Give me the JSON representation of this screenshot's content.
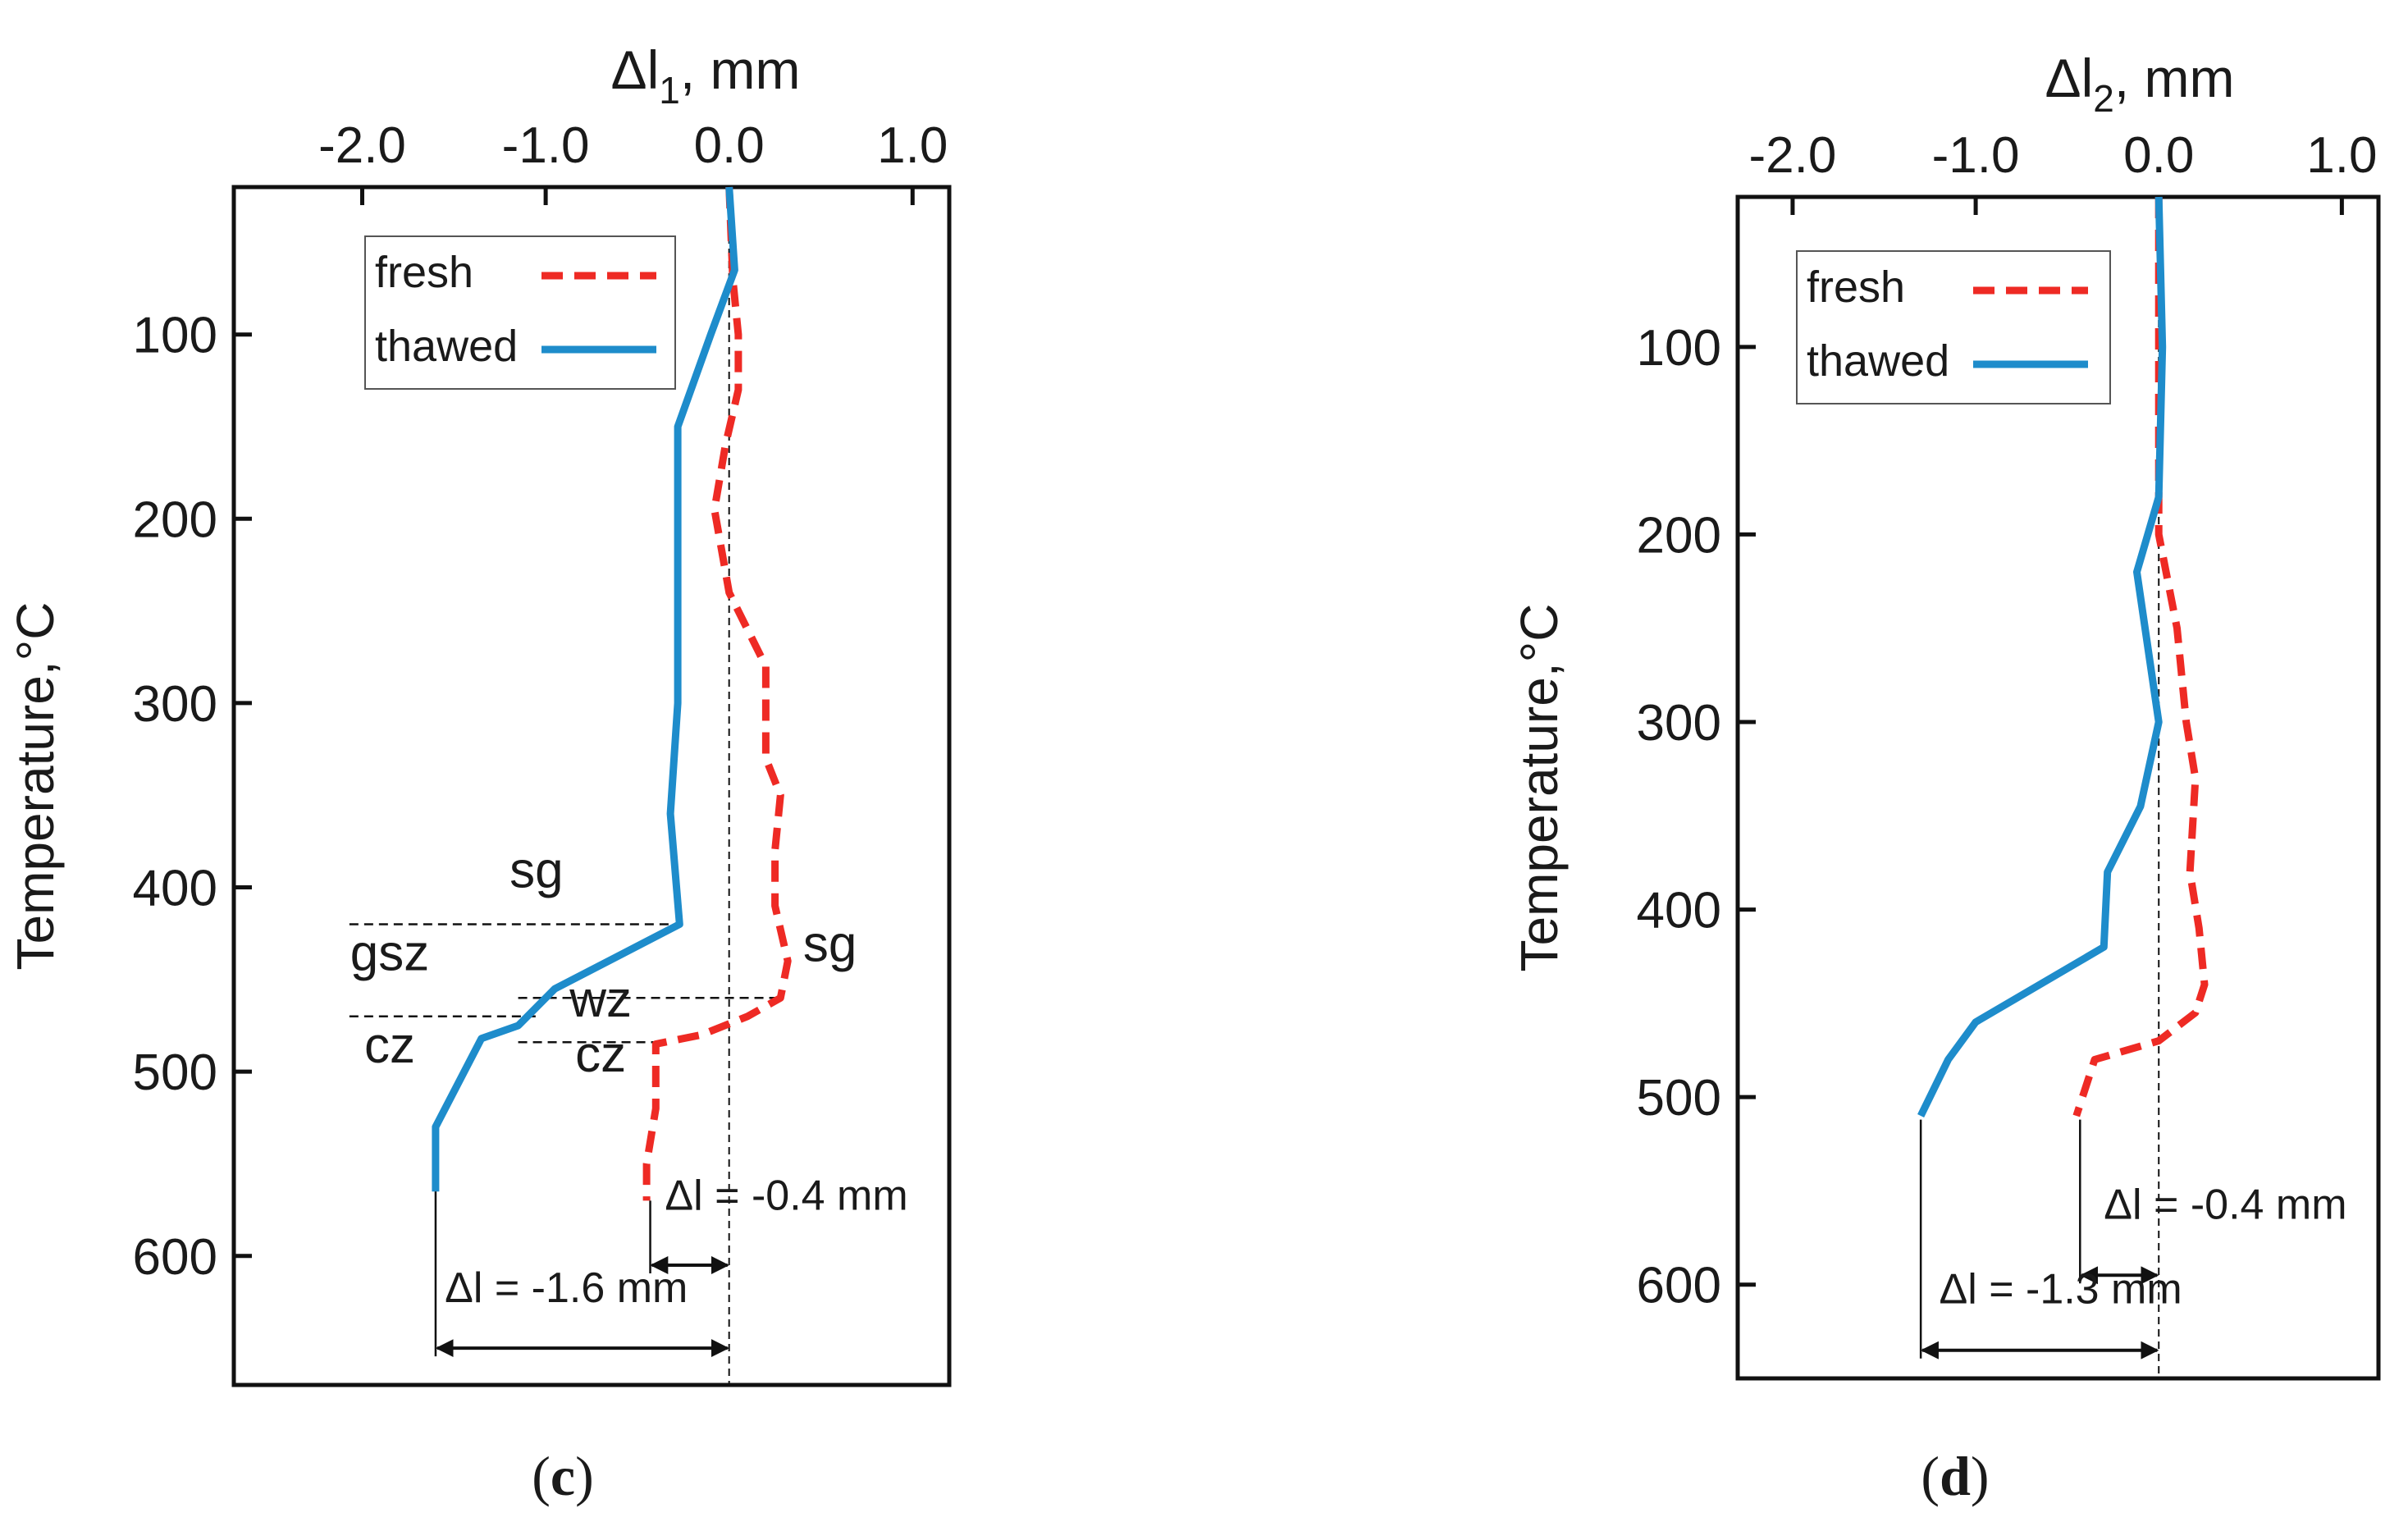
{
  "colors": {
    "fresh": "#ee2a24",
    "thawed": "#1e8ccb",
    "axis": "#111111"
  },
  "chart_data": [
    {
      "type": "line",
      "panel": "c",
      "caption": {
        "open": "(",
        "letter": "c",
        "close": ")"
      },
      "xlabel": {
        "prefix": "Δl",
        "sub": "1",
        "suffix": ", mm"
      },
      "ylabel": "Temperature,°C",
      "xlim": [
        -2.7,
        1.2
      ],
      "ylim": [
        20,
        670
      ],
      "xticks": [
        -2.0,
        -1.0,
        0.0,
        1.0
      ],
      "xtick_labels": [
        "-2.0",
        "-1.0",
        "0.0",
        "1.0"
      ],
      "yticks": [
        100,
        200,
        300,
        400,
        500,
        600
      ],
      "ytick_labels": [
        "100",
        "200",
        "300",
        "400",
        "500",
        "600"
      ],
      "legend": {
        "position": "top-left",
        "entries": [
          "fresh",
          "thawed"
        ]
      },
      "series": [
        {
          "name": "fresh",
          "style": "dashed",
          "points": [
            [
              0.0,
              20
            ],
            [
              0.02,
              70
            ],
            [
              0.05,
              100
            ],
            [
              0.05,
              130
            ],
            [
              -0.02,
              160
            ],
            [
              -0.08,
              195
            ],
            [
              0.0,
              240
            ],
            [
              0.2,
              280
            ],
            [
              0.2,
              330
            ],
            [
              0.28,
              350
            ],
            [
              0.25,
              380
            ],
            [
              0.25,
              410
            ],
            [
              0.32,
              440
            ],
            [
              0.28,
              460
            ],
            [
              0.1,
              470
            ],
            [
              -0.15,
              480
            ],
            [
              -0.4,
              485
            ],
            [
              -0.4,
              520
            ],
            [
              -0.45,
              550
            ],
            [
              -0.45,
              570
            ]
          ]
        },
        {
          "name": "thawed",
          "style": "solid",
          "points": [
            [
              0.0,
              20
            ],
            [
              0.03,
              65
            ],
            [
              -0.1,
              100
            ],
            [
              -0.28,
              150
            ],
            [
              -0.28,
              300
            ],
            [
              -0.32,
              360
            ],
            [
              -0.27,
              420
            ],
            [
              -0.95,
              455
            ],
            [
              -1.15,
              475
            ],
            [
              -1.35,
              482
            ],
            [
              -1.6,
              530
            ],
            [
              -1.6,
              565
            ]
          ]
        }
      ],
      "annotations": [
        {
          "text": "sg",
          "x": -1.05,
          "y": 400
        },
        {
          "text": "gsz",
          "x": -1.85,
          "y": 445
        },
        {
          "text": "cz",
          "x": -1.85,
          "y": 495
        },
        {
          "text": "wz",
          "x": -0.7,
          "y": 470
        },
        {
          "text": "cz",
          "x": -0.7,
          "y": 500
        },
        {
          "text": "sg",
          "x": 0.55,
          "y": 440
        }
      ],
      "zone_lines": [
        {
          "y": 420,
          "x0": -2.07,
          "x1": -0.27
        },
        {
          "y": 470,
          "x0": -2.07,
          "x1": -1.05
        },
        {
          "y": 460,
          "x0": -1.15,
          "x1": 0.28
        },
        {
          "y": 484,
          "x0": -1.15,
          "x1": -0.38
        }
      ],
      "deltas": [
        {
          "text": "Δl = -0.4 mm",
          "from": -0.43,
          "to": 0.0,
          "y": 605,
          "vline_from": 570,
          "label_x": -0.35,
          "label_y": 575
        },
        {
          "text": "Δl = -1.6 mm",
          "from": -1.6,
          "to": 0.0,
          "y": 650,
          "vline_from": 565,
          "label_x": -1.55,
          "label_y": 625
        }
      ]
    },
    {
      "type": "line",
      "panel": "d",
      "caption": {
        "open": "(",
        "letter": "d",
        "close": ")"
      },
      "xlabel": {
        "prefix": "Δl",
        "sub": "2",
        "suffix": ", mm"
      },
      "ylabel": "Temperature,°C",
      "xlim": [
        -2.3,
        1.2
      ],
      "ylim": [
        20,
        650
      ],
      "xticks": [
        -2.0,
        -1.0,
        0.0,
        1.0
      ],
      "xtick_labels": [
        "-2.0",
        "-1.0",
        "0.0",
        "1.0"
      ],
      "yticks": [
        100,
        200,
        300,
        400,
        500,
        600
      ],
      "ytick_labels": [
        "100",
        "200",
        "300",
        "400",
        "500",
        "600"
      ],
      "legend": {
        "position": "top-left",
        "entries": [
          "fresh",
          "thawed"
        ]
      },
      "series": [
        {
          "name": "fresh",
          "style": "dashed",
          "points": [
            [
              0.0,
              20
            ],
            [
              0.0,
              100
            ],
            [
              0.0,
              200
            ],
            [
              0.1,
              250
            ],
            [
              0.15,
              300
            ],
            [
              0.2,
              330
            ],
            [
              0.17,
              380
            ],
            [
              0.22,
              410
            ],
            [
              0.25,
              440
            ],
            [
              0.2,
              455
            ],
            [
              0.0,
              470
            ],
            [
              -0.35,
              480
            ],
            [
              -0.45,
              510
            ]
          ]
        },
        {
          "name": "thawed",
          "style": "solid",
          "points": [
            [
              0.0,
              20
            ],
            [
              0.02,
              100
            ],
            [
              0.0,
              180
            ],
            [
              -0.12,
              220
            ],
            [
              0.0,
              300
            ],
            [
              -0.1,
              345
            ],
            [
              -0.28,
              380
            ],
            [
              -0.3,
              420
            ],
            [
              -1.0,
              460
            ],
            [
              -1.15,
              480
            ],
            [
              -1.3,
              510
            ]
          ]
        }
      ],
      "deltas": [
        {
          "text": "Δl = -0.4 mm",
          "from": -0.43,
          "to": 0.0,
          "y": 595,
          "vline_from": 512,
          "label_x": -0.3,
          "label_y": 565
        },
        {
          "text": "Δl = -1.3 mm",
          "from": -1.3,
          "to": 0.0,
          "y": 635,
          "vline_from": 512,
          "label_x": -1.2,
          "label_y": 610
        }
      ]
    }
  ]
}
